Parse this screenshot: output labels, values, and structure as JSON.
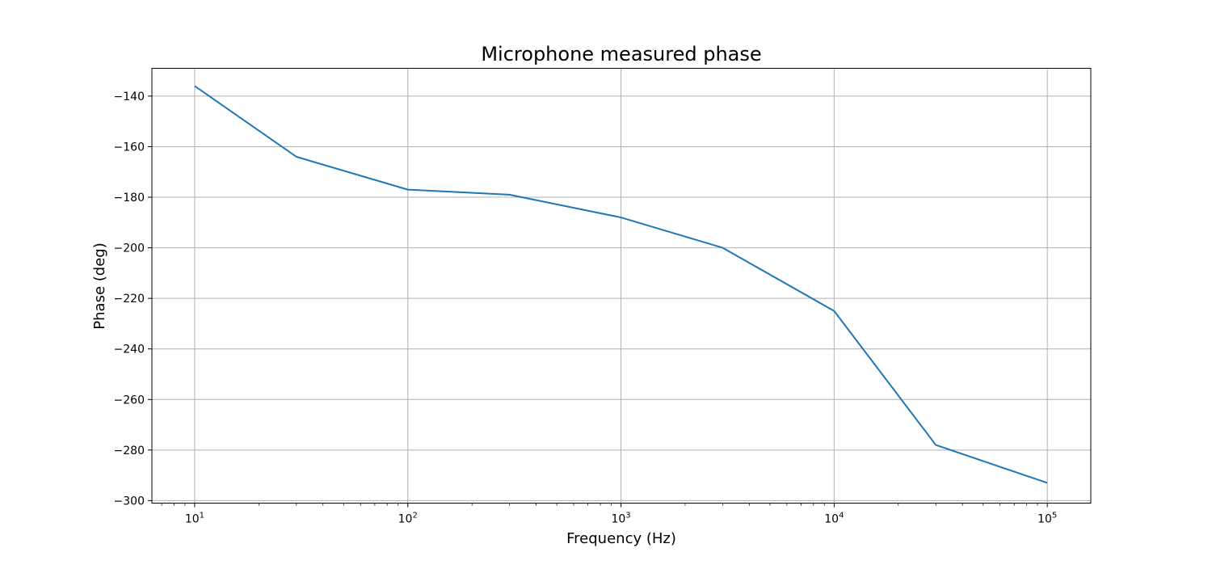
{
  "chart_data": {
    "type": "line",
    "title": "Microphone measured phase",
    "xlabel": "Frequency (Hz)",
    "ylabel": "Phase (deg)",
    "x_scale": "log",
    "xlim": [
      6.3,
      160000
    ],
    "ylim": [
      -301,
      -129
    ],
    "grid": true,
    "x_ticks": [
      {
        "value": 10,
        "base": "10",
        "exp": "1"
      },
      {
        "value": 100,
        "base": "10",
        "exp": "2"
      },
      {
        "value": 1000,
        "base": "10",
        "exp": "3"
      },
      {
        "value": 10000,
        "base": "10",
        "exp": "4"
      },
      {
        "value": 100000,
        "base": "10",
        "exp": "5"
      }
    ],
    "y_ticks": [
      -140,
      -160,
      -180,
      -200,
      -220,
      -240,
      -260,
      -280,
      -300
    ],
    "y_tick_labels": [
      "−140",
      "−160",
      "−180",
      "−200",
      "−220",
      "−240",
      "−260",
      "−280",
      "−300"
    ],
    "series": [
      {
        "color": "#1f77b4",
        "x": [
          10,
          30,
          100,
          300,
          1000,
          3000,
          10000,
          30000,
          100000
        ],
        "y": [
          -136,
          -164,
          -177,
          -179,
          -188,
          -200,
          -225,
          -278,
          -293
        ]
      }
    ]
  }
}
